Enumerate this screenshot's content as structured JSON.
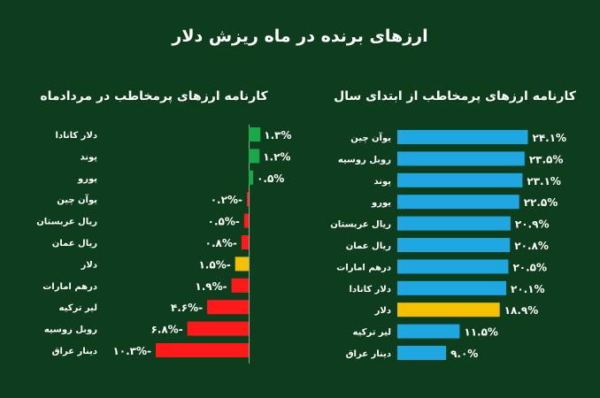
{
  "title": "ارزهای برنده در ماه ریزش دلار",
  "colors": {
    "background": "#0d3d1c",
    "right_bar": "#1ea7e1",
    "highlight": "#f5c000",
    "positive": "#1aa84a",
    "negative": "#ff1a1a",
    "text": "#ffffff"
  },
  "chart_data": [
    {
      "type": "bar",
      "orientation": "horizontal",
      "title": "کارنامه ارزهای پرمخاطب از ابتدای سال",
      "categories": [
        "یوآن چین",
        "روبل روسیه",
        "پوند",
        "یورو",
        "ریال عربستان",
        "ریال عمان",
        "درهم امارات",
        "دلار کانادا",
        "دلار",
        "لیر ترکیه",
        "دینار عراق"
      ],
      "values": [
        24.1,
        23.5,
        23.1,
        22.5,
        20.9,
        20.8,
        20.5,
        20.1,
        18.9,
        11.5,
        9.0
      ],
      "labels": [
        "۲۴.۱%",
        "۲۳.۵%",
        "۲۳.۱%",
        "۲۲.۵%",
        "۲۰.۹%",
        "۲۰.۸%",
        "۲۰.۵%",
        "۲۰.۱%",
        "۱۸.۹%",
        "۱۱.۵%",
        "۹.۰%"
      ],
      "highlight": "دلار",
      "xlim": [
        0,
        27
      ],
      "grid": false
    },
    {
      "type": "bar",
      "orientation": "horizontal",
      "title": "کارنامه ارزهای پرمخاطب در مردادماه",
      "categories": [
        "دلار کانادا",
        "پوند",
        "یورو",
        "یوآن چین",
        "ریال عربستان",
        "ریال عمان",
        "دلار",
        "درهم امارات",
        "لیر ترکیه",
        "روبل روسیه",
        "دینار عراق"
      ],
      "values": [
        1.3,
        1.2,
        0.5,
        -0.2,
        -0.5,
        -0.8,
        -1.5,
        -1.9,
        -4.6,
        -6.8,
        -10.3
      ],
      "labels": [
        "۱.۳%",
        "۱.۲%",
        "۰.۵%",
        "-۰.۲%",
        "-۰.۵%",
        "-۰.۸%",
        "-۱.۵%",
        "-۱.۹%",
        "-۴.۶%",
        "-۶.۸%",
        "-۱۰.۳%"
      ],
      "highlight": "دلار",
      "xlim": [
        -10.3,
        1.3
      ],
      "grid": false
    }
  ]
}
